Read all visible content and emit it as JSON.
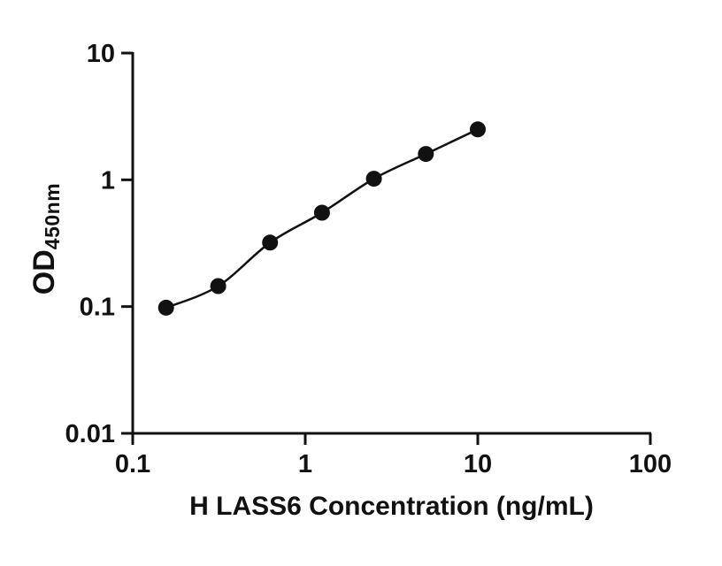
{
  "chart_data": {
    "type": "scatter",
    "title": "",
    "xlabel": "H LASS6 Concentration (ng/mL)",
    "ylabel_main": "OD",
    "ylabel_sub": "450nm",
    "x_scale": "log",
    "y_scale": "log",
    "xlim": [
      0.1,
      100
    ],
    "ylim": [
      0.01,
      10
    ],
    "x": [
      0.156,
      0.313,
      0.625,
      1.25,
      2.5,
      5,
      10
    ],
    "y": [
      0.098,
      0.145,
      0.32,
      0.55,
      1.02,
      1.6,
      2.5
    ],
    "x_ticks": [
      {
        "value": 0.1,
        "label": "0.1"
      },
      {
        "value": 1,
        "label": "1"
      },
      {
        "value": 10,
        "label": "10"
      },
      {
        "value": 100,
        "label": "100"
      }
    ],
    "y_ticks": [
      {
        "value": 0.01,
        "label": "0.01"
      },
      {
        "value": 0.1,
        "label": "0.1"
      },
      {
        "value": 1,
        "label": "1"
      },
      {
        "value": 10,
        "label": "10"
      }
    ],
    "grid": false,
    "legend": null,
    "line_color": "#111111",
    "marker_color": "#111111",
    "axis_color": "#111111"
  }
}
